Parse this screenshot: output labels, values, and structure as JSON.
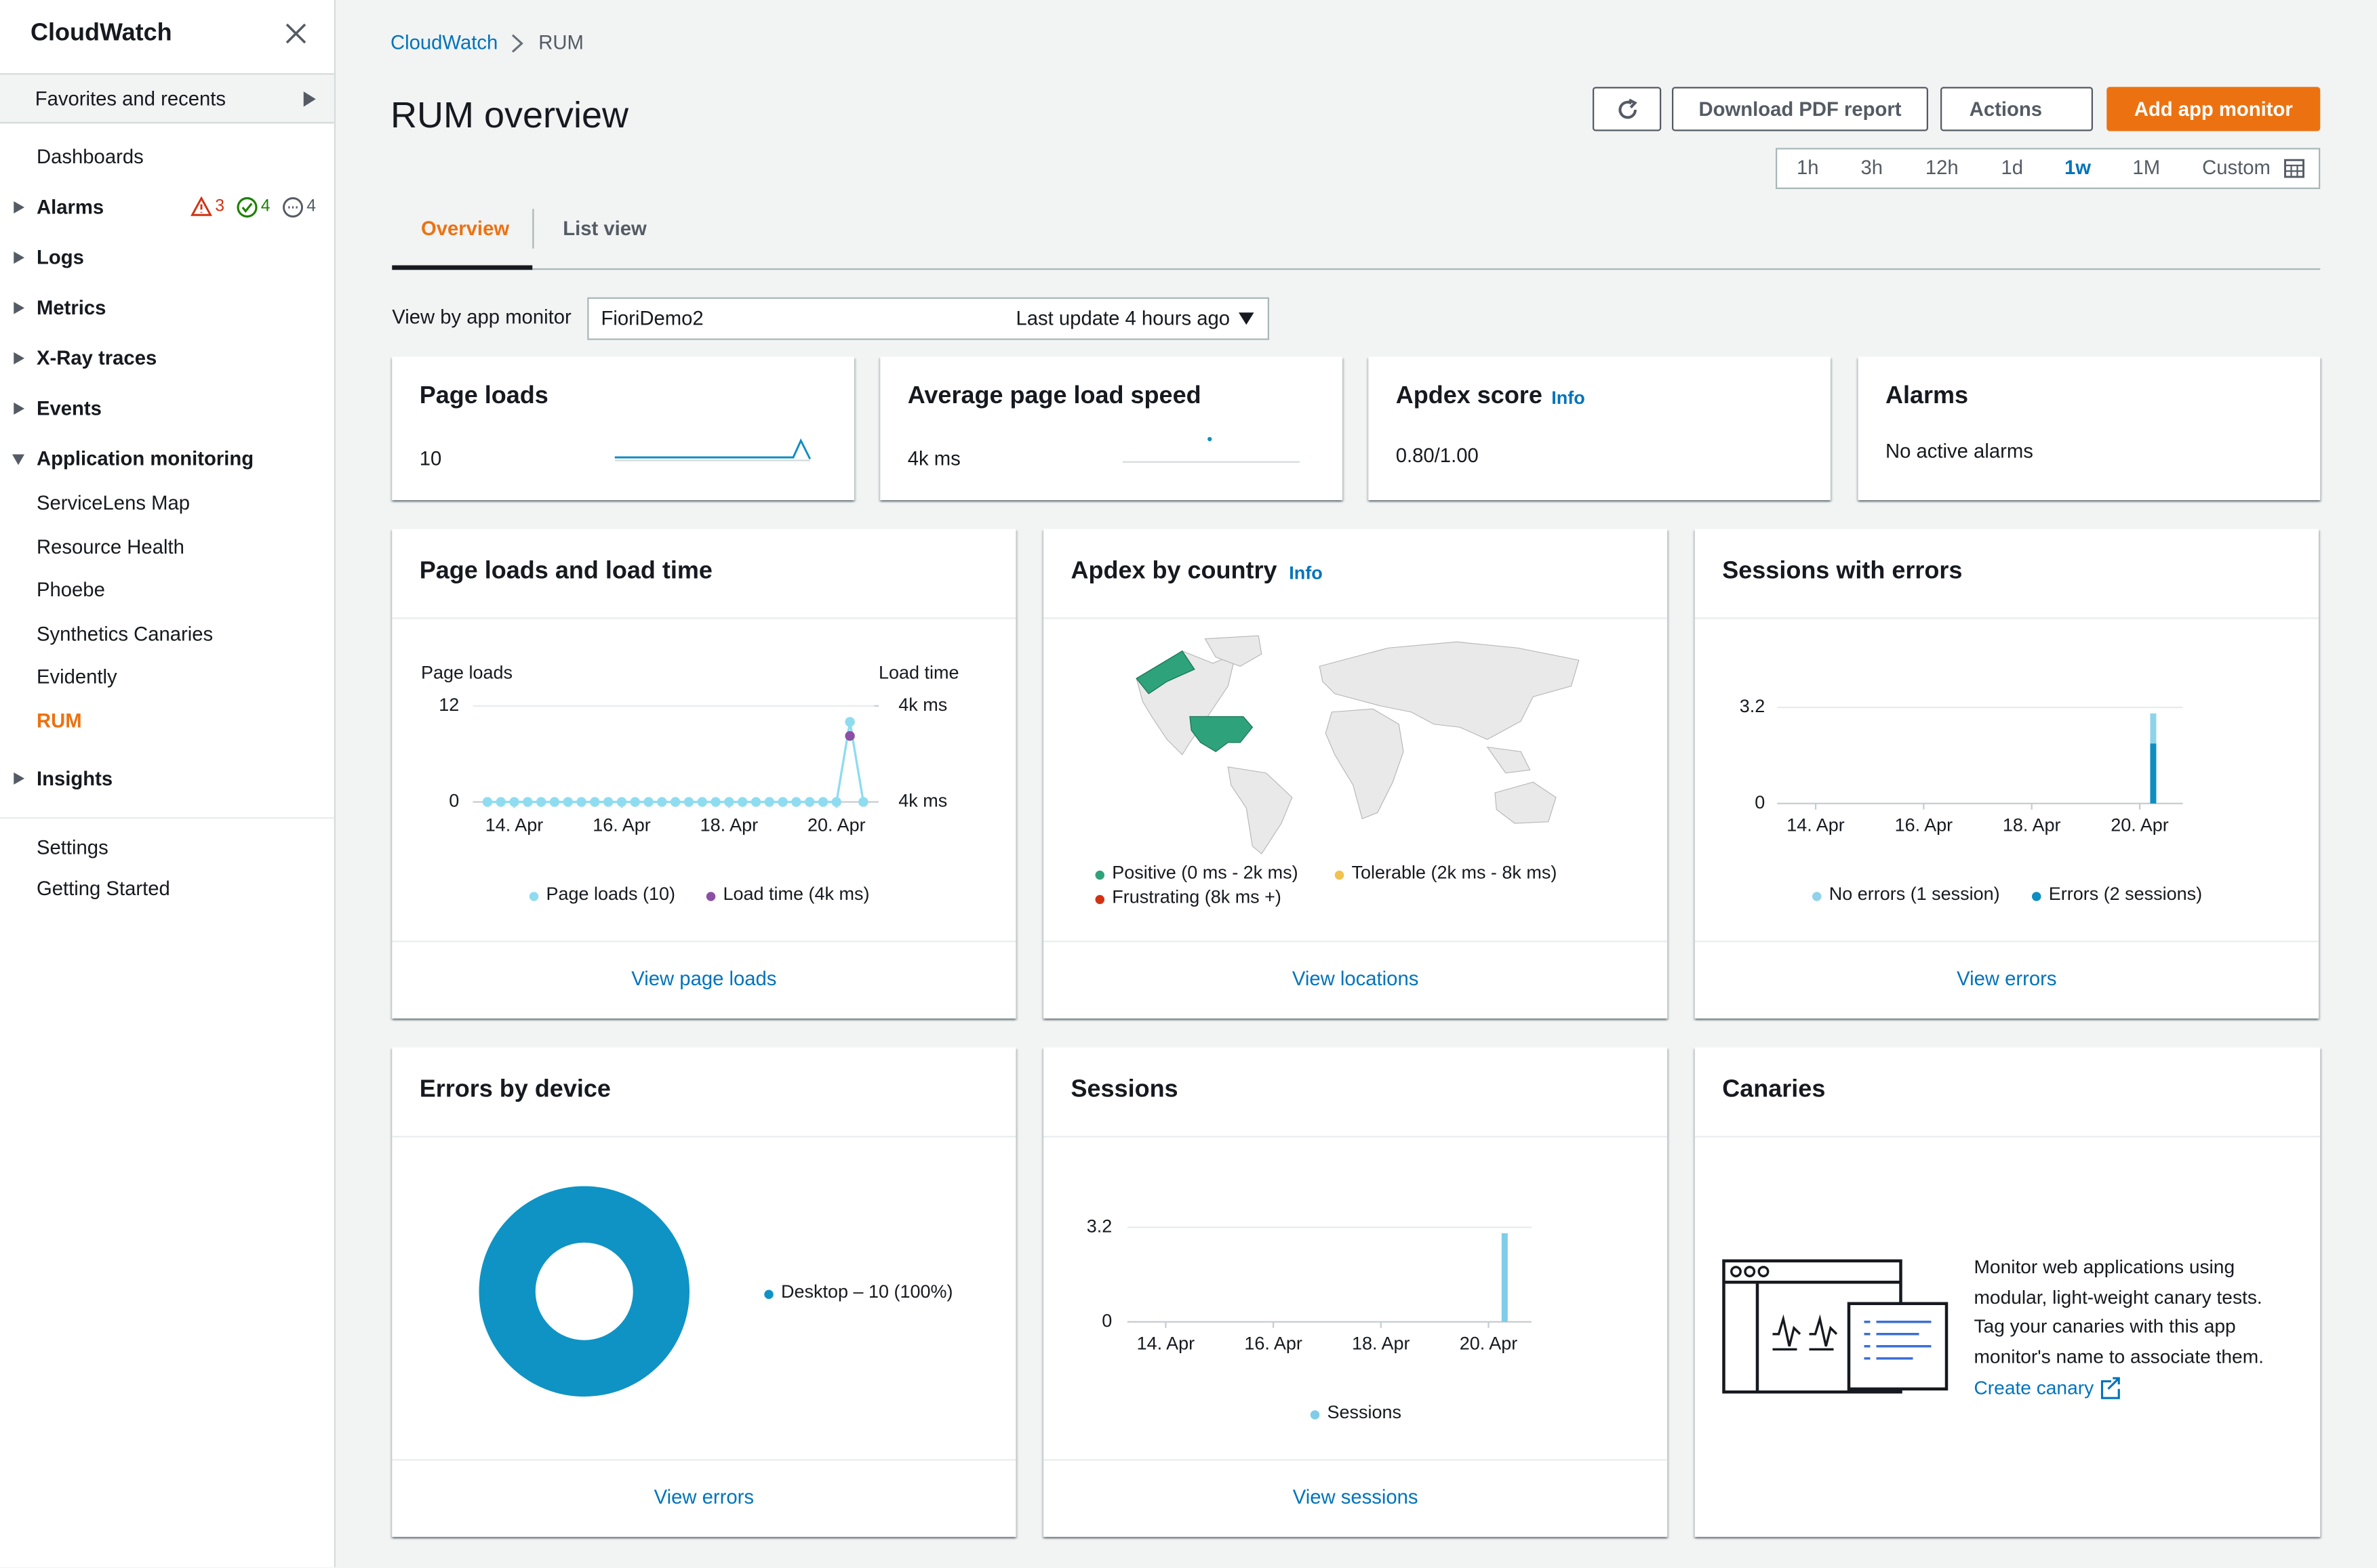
{
  "sidebar": {
    "title": "CloudWatch",
    "favorites": "Favorites and recents",
    "nav": [
      {
        "label": "Dashboards"
      },
      {
        "label": "Alarms",
        "expandable": true,
        "badges": [
          "3",
          "4",
          "4"
        ]
      },
      {
        "label": "Logs",
        "expandable": true
      },
      {
        "label": "Metrics",
        "expandable": true
      },
      {
        "label": "X-Ray traces",
        "expandable": true
      },
      {
        "label": "Events",
        "expandable": true
      },
      {
        "label": "Application monitoring",
        "expandable": true,
        "expanded": true,
        "children": [
          "ServiceLens Map",
          "Resource Health",
          "Phoebe",
          "Synthetics Canaries",
          "Evidently",
          "RUM"
        ],
        "active_child": 5
      },
      {
        "label": "Insights",
        "expandable": true
      }
    ],
    "footer_nav": [
      "Settings",
      "Getting Started"
    ]
  },
  "breadcrumb": [
    "CloudWatch",
    "RUM"
  ],
  "header": {
    "title": "RUM overview",
    "buttons": [
      "Download PDF report",
      "Actions",
      "Add app monitor"
    ],
    "time_ranges": [
      "1h",
      "3h",
      "12h",
      "1d",
      "1w",
      "1M",
      "Custom"
    ],
    "selected_range": 4
  },
  "tabs": [
    "Overview",
    "List view"
  ],
  "filter": {
    "label": "View by app monitor",
    "monitor": "FioriDemo2",
    "last_update": "Last update 4 hours ago"
  },
  "summary": [
    {
      "title": "Page loads",
      "value": "10"
    },
    {
      "title": "Average page load speed",
      "value": "4k ms"
    },
    {
      "title": "Apdex score",
      "info": "Info",
      "value": "0.80/1.00"
    },
    {
      "title": "Alarms",
      "value": "No active alarms"
    }
  ],
  "page_loads_widget": {
    "title": "Page loads and load time",
    "footer": "View page loads",
    "chart_data": {
      "type": "line",
      "y_label": "Page loads",
      "y2_label": "Load time",
      "xlim": [
        13.4,
        20.7
      ],
      "xticks": [
        {
          "value": 14,
          "label": "14. Apr"
        },
        {
          "value": 16,
          "label": "16. Apr"
        },
        {
          "value": 18,
          "label": "18. Apr"
        },
        {
          "value": 20,
          "label": "20. Apr"
        }
      ],
      "ylim": [
        0,
        12
      ],
      "yticks": [
        0,
        12
      ],
      "y2lim": [
        3600,
        4400
      ],
      "y2ticks": [
        {
          "value": 4400,
          "label": "4k ms"
        },
        {
          "value": 3600,
          "label": "4k ms"
        }
      ],
      "series": [
        {
          "name": "Page loads (10)",
          "color": "#8fdcf0",
          "x": [
            13.5,
            13.75,
            14,
            14.25,
            14.5,
            14.75,
            15,
            15.25,
            15.5,
            15.75,
            16,
            16.25,
            16.5,
            16.75,
            17,
            17.25,
            17.5,
            17.75,
            18,
            18.25,
            18.5,
            18.75,
            19,
            19.25,
            19.5,
            19.75,
            20,
            20.25,
            20.5
          ],
          "values": [
            0,
            0,
            0,
            0,
            0,
            0,
            0,
            0,
            0,
            0,
            0,
            0,
            0,
            0,
            0,
            0,
            0,
            0,
            0,
            0,
            0,
            0,
            0,
            0,
            0,
            0,
            0,
            10,
            0
          ]
        },
        {
          "name": "Load time (4k ms)",
          "color": "#8c4fa6",
          "axis": "y2",
          "x": [
            20.25
          ],
          "values": [
            4150
          ]
        }
      ]
    }
  },
  "apdex_widget": {
    "title": "Apdex by country",
    "info": "Info",
    "footer": "View locations",
    "legend": [
      {
        "name": "Positive (0 ms - 2k ms)",
        "color": "#2ea37b"
      },
      {
        "name": "Tolerable (2k ms - 8k ms)",
        "color": "#f2c14e"
      },
      {
        "name": "Frustrating (8k ms +)",
        "color": "#d13212"
      }
    ]
  },
  "errors_widget": {
    "title": "Sessions with errors",
    "footer": "View errors",
    "chart_data": {
      "type": "stacked_bar",
      "xlim": [
        13.4,
        20.8
      ],
      "xticks": [
        {
          "value": 14,
          "label": "14. Apr"
        },
        {
          "value": 16,
          "label": "16. Apr"
        },
        {
          "value": 18,
          "label": "18. Apr"
        },
        {
          "value": 20,
          "label": "20. Apr"
        }
      ],
      "ylim": [
        0,
        3.2
      ],
      "yticks": [
        0,
        3.2
      ],
      "x": [
        20.25
      ],
      "series": [
        {
          "name": "Errors (2 sessions)",
          "color": "#0f8ec1",
          "values": [
            2
          ]
        },
        {
          "name": "No errors (1 session)",
          "color": "#8fd3ea",
          "values": [
            1
          ]
        }
      ]
    }
  },
  "device_widget": {
    "title": "Errors by device",
    "footer": "View errors",
    "chart_data": {
      "type": "pie",
      "categories": [
        "Desktop"
      ],
      "values": [
        10
      ],
      "value_labels": [
        "Desktop – 10 (100%)"
      ],
      "colors": [
        "#0f93c4"
      ]
    }
  },
  "sessions_widget": {
    "title": "Sessions",
    "footer": "View sessions",
    "chart_data": {
      "type": "bar",
      "xlim": [
        13.4,
        20.8
      ],
      "xticks": [
        {
          "value": 14,
          "label": "14. Apr"
        },
        {
          "value": 16,
          "label": "16. Apr"
        },
        {
          "value": 18,
          "label": "18. Apr"
        },
        {
          "value": 20,
          "label": "20. Apr"
        }
      ],
      "ylim": [
        0,
        3.2
      ],
      "yticks": [
        0,
        3.2
      ],
      "x": [
        20.3
      ],
      "series": [
        {
          "name": "Sessions",
          "color": "#7fcde8",
          "values": [
            3
          ]
        }
      ]
    }
  },
  "canaries_widget": {
    "title": "Canaries",
    "text": "Monitor web applications using modular, light-weight canary tests. Tag your canaries with this app monitor's name to associate them.",
    "link": "Create canary"
  }
}
